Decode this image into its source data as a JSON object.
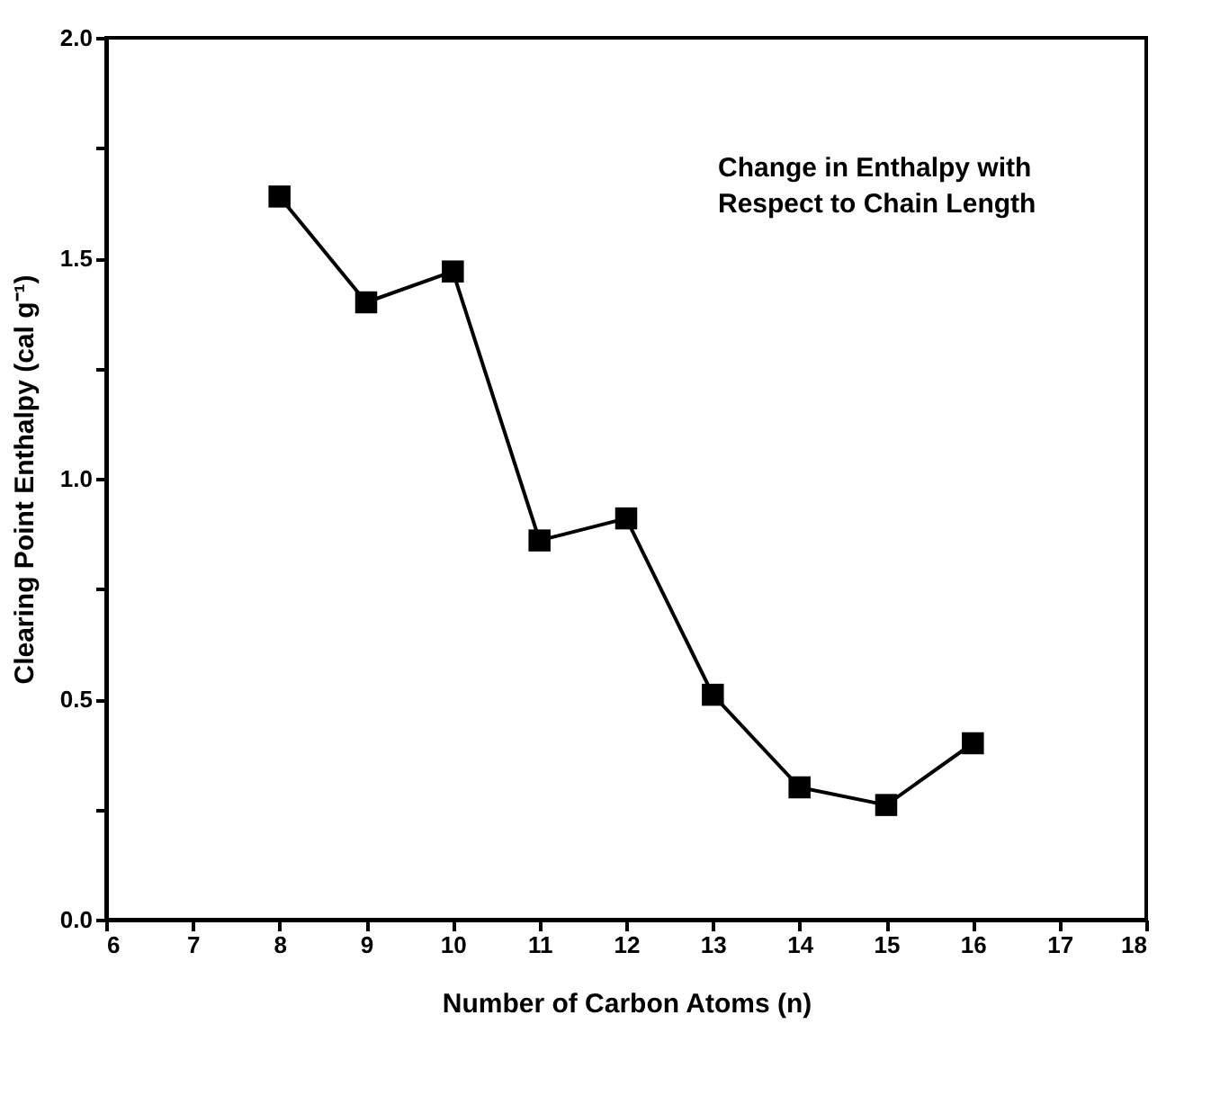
{
  "chart_data": {
    "type": "line",
    "x": [
      8,
      9,
      10,
      11,
      12,
      13,
      14,
      15,
      16
    ],
    "series": [
      {
        "color": "#000000",
        "values": [
          1.64,
          1.4,
          1.47,
          0.86,
          0.91,
          0.51,
          0.3,
          0.26,
          0.4
        ]
      }
    ],
    "xlabel": "Number of Carbon Atoms (n)",
    "ylabel": "Clearing Point Enthalpy (cal g⁻¹)",
    "xlim": [
      6,
      18
    ],
    "xticks": [
      6,
      7,
      8,
      9,
      10,
      11,
      12,
      13,
      14,
      15,
      16,
      17,
      18
    ],
    "ylim": [
      0,
      2
    ],
    "yticks": [
      {
        "value": 0,
        "label": "0.0"
      },
      {
        "value": 0.25,
        "label": null
      },
      {
        "value": 0.5,
        "label": "0.5"
      },
      {
        "value": 0.75,
        "label": null
      },
      {
        "value": 1,
        "label": "1.0"
      },
      {
        "value": 1.25,
        "label": null
      },
      {
        "value": 1.5,
        "label": "1.5"
      },
      {
        "value": 1.75,
        "label": null
      },
      {
        "value": 2,
        "label": "2.0"
      }
    ],
    "annotations": [
      "Change in Enthalpy with\nRespect to Chain Length"
    ],
    "marker": "square",
    "line_style": "solid",
    "grid": false
  }
}
